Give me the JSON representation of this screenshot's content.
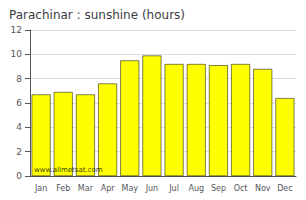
{
  "chart_data": {
    "type": "bar",
    "title": "Parachinar : sunshine (hours)",
    "categories": [
      "Jan",
      "Feb",
      "Mar",
      "Apr",
      "May",
      "Jun",
      "Jul",
      "Aug",
      "Sep",
      "Oct",
      "Nov",
      "Dec"
    ],
    "values": [
      6.7,
      6.9,
      6.7,
      7.6,
      9.5,
      9.9,
      9.2,
      9.2,
      9.1,
      9.2,
      8.8,
      6.4
    ],
    "color": "#FFFF00",
    "ylim": [
      0,
      12
    ],
    "yticks": [
      0,
      2,
      4,
      6,
      8,
      10,
      12
    ],
    "grid": true,
    "annotations": [
      "www.allmetsat.com"
    ]
  }
}
